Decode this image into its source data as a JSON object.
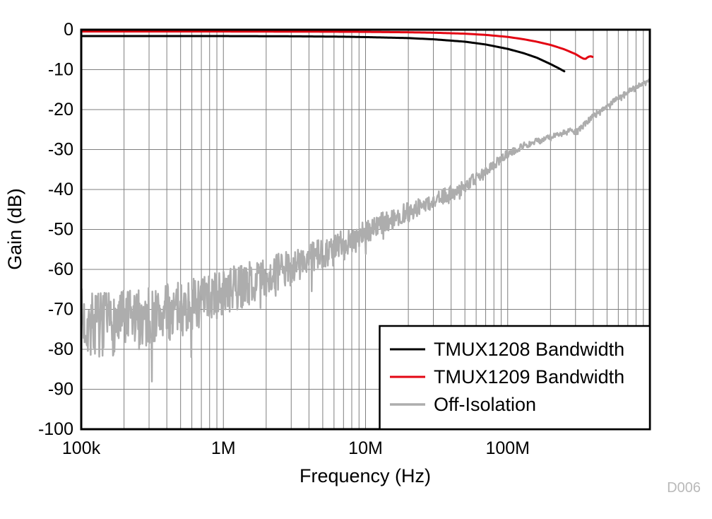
{
  "figure": {
    "watermark": "D006",
    "background": "#ffffff",
    "grid_color": "#7f7f7f",
    "border_color": "#000000"
  },
  "chart_data": {
    "type": "line",
    "title": "",
    "xlabel": "Frequency (Hz)",
    "ylabel": "Gain (dB)",
    "x_scale": "log",
    "xlim": [
      100000,
      1000000000
    ],
    "ylim": [
      -100,
      0
    ],
    "grid": true,
    "legend_position": "bottom-right",
    "noise_seed": 7,
    "xticks": [
      {
        "value": 100000,
        "label": "100k"
      },
      {
        "value": 1000000,
        "label": "1M"
      },
      {
        "value": 10000000,
        "label": "10M"
      },
      {
        "value": 100000000,
        "label": "100M"
      }
    ],
    "yticks": [
      {
        "value": 0,
        "label": "0"
      },
      {
        "value": -10,
        "label": "-10"
      },
      {
        "value": -20,
        "label": "-20"
      },
      {
        "value": -30,
        "label": "-30"
      },
      {
        "value": -40,
        "label": "-40"
      },
      {
        "value": -50,
        "label": "-50"
      },
      {
        "value": -60,
        "label": "-60"
      },
      {
        "value": -70,
        "label": "-70"
      },
      {
        "value": -80,
        "label": "-80"
      },
      {
        "value": -90,
        "label": "-90"
      },
      {
        "value": -100,
        "label": "-100"
      }
    ],
    "series": [
      {
        "name": "TMUX1208 Bandwidth",
        "color": "#000000",
        "width": 3,
        "points": [
          [
            100000,
            -1.6
          ],
          [
            500000,
            -1.6
          ],
          [
            1000000,
            -1.6
          ],
          [
            3000000,
            -1.65
          ],
          [
            7000000,
            -1.75
          ],
          [
            10000000,
            -1.85
          ],
          [
            20000000,
            -2.1
          ],
          [
            30000000,
            -2.4
          ],
          [
            50000000,
            -3.0
          ],
          [
            70000000,
            -3.7
          ],
          [
            100000000,
            -4.8
          ],
          [
            130000000,
            -5.9
          ],
          [
            160000000,
            -7.0
          ],
          [
            200000000,
            -8.6
          ],
          [
            230000000,
            -9.7
          ],
          [
            250000000,
            -10.4
          ]
        ]
      },
      {
        "name": "TMUX1209 Bandwidth",
        "color": "#e30613",
        "width": 3,
        "points": [
          [
            100000,
            -0.45
          ],
          [
            1000000,
            -0.45
          ],
          [
            5000000,
            -0.5
          ],
          [
            10000000,
            -0.55
          ],
          [
            20000000,
            -0.65
          ],
          [
            30000000,
            -0.75
          ],
          [
            50000000,
            -1.0
          ],
          [
            70000000,
            -1.3
          ],
          [
            100000000,
            -1.8
          ],
          [
            130000000,
            -2.4
          ],
          [
            160000000,
            -3.0
          ],
          [
            200000000,
            -3.8
          ],
          [
            250000000,
            -4.9
          ],
          [
            300000000,
            -6.1
          ],
          [
            330000000,
            -7.0
          ],
          [
            350000000,
            -7.4
          ],
          [
            365000000,
            -6.9
          ],
          [
            380000000,
            -6.6
          ],
          [
            395000000,
            -6.8
          ]
        ]
      },
      {
        "name": "Off-Isolation",
        "color": "#adadad",
        "width": 2.5,
        "points": [
          [
            100000,
            -73
          ],
          [
            150000,
            -74
          ],
          [
            200000,
            -73
          ],
          [
            300000,
            -72
          ],
          [
            500000,
            -70
          ],
          [
            700000,
            -68
          ],
          [
            1000000,
            -66
          ],
          [
            1500000,
            -63.5
          ],
          [
            2000000,
            -62
          ],
          [
            3000000,
            -59.5
          ],
          [
            5000000,
            -56
          ],
          [
            7000000,
            -53.5
          ],
          [
            10000000,
            -50.5
          ],
          [
            15000000,
            -47.5
          ],
          [
            20000000,
            -45.5
          ],
          [
            30000000,
            -43
          ],
          [
            50000000,
            -39
          ],
          [
            70000000,
            -35.5
          ],
          [
            100000000,
            -31
          ],
          [
            130000000,
            -29
          ],
          [
            160000000,
            -28
          ],
          [
            200000000,
            -27
          ],
          [
            240000000,
            -26
          ],
          [
            280000000,
            -25.3
          ],
          [
            310000000,
            -25.6
          ],
          [
            340000000,
            -24
          ],
          [
            400000000,
            -21.5
          ],
          [
            500000000,
            -19
          ],
          [
            600000000,
            -17
          ],
          [
            750000000,
            -14.8
          ],
          [
            1000000000,
            -12.6
          ]
        ],
        "noise_profile": [
          [
            100000,
            8.5
          ],
          [
            300000,
            7.5
          ],
          [
            1000000,
            6
          ],
          [
            3000000,
            4.5
          ],
          [
            10000000,
            3
          ],
          [
            30000000,
            2
          ],
          [
            100000000,
            1
          ],
          [
            200000000,
            0.8
          ],
          [
            400000000,
            0.7
          ],
          [
            1000000000,
            0.5
          ]
        ]
      }
    ]
  }
}
